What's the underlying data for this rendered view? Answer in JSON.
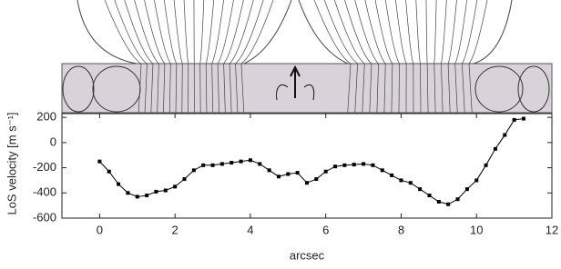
{
  "chart_data": {
    "type": "line",
    "x_label": "arcsec",
    "y_label": "LoS velocity [m s⁻¹]",
    "x": [
      0,
      0.25,
      0.5,
      0.75,
      1.0,
      1.25,
      1.5,
      1.75,
      2.0,
      2.25,
      2.5,
      2.75,
      3.0,
      3.25,
      3.5,
      3.75,
      4.0,
      4.25,
      4.5,
      4.75,
      5.0,
      5.25,
      5.5,
      5.75,
      6.0,
      6.25,
      6.5,
      6.75,
      7.0,
      7.25,
      7.5,
      7.75,
      8.0,
      8.25,
      8.5,
      8.75,
      9.0,
      9.25,
      9.5,
      9.75,
      10.0,
      10.25,
      10.5,
      10.75,
      11.0,
      11.25
    ],
    "series": [
      {
        "color": "#000000",
        "values": [
          -150,
          -230,
          -330,
          -400,
          -430,
          -420,
          -390,
          -380,
          -350,
          -290,
          -220,
          -180,
          -180,
          -170,
          -160,
          -150,
          -140,
          -170,
          -220,
          -270,
          -250,
          -240,
          -320,
          -290,
          -230,
          -190,
          -180,
          -175,
          -170,
          -180,
          -220,
          -260,
          -300,
          -320,
          -370,
          -420,
          -470,
          -490,
          -450,
          -370,
          -300,
          -180,
          -50,
          60,
          180,
          190
        ]
      }
    ],
    "xlim": [
      -1,
      12
    ],
    "xticks": [
      0,
      2,
      4,
      6,
      8,
      10,
      12
    ],
    "ylim": [
      -600,
      230
    ],
    "yticks": [
      -600,
      -400,
      -200,
      0,
      200
    ]
  }
}
